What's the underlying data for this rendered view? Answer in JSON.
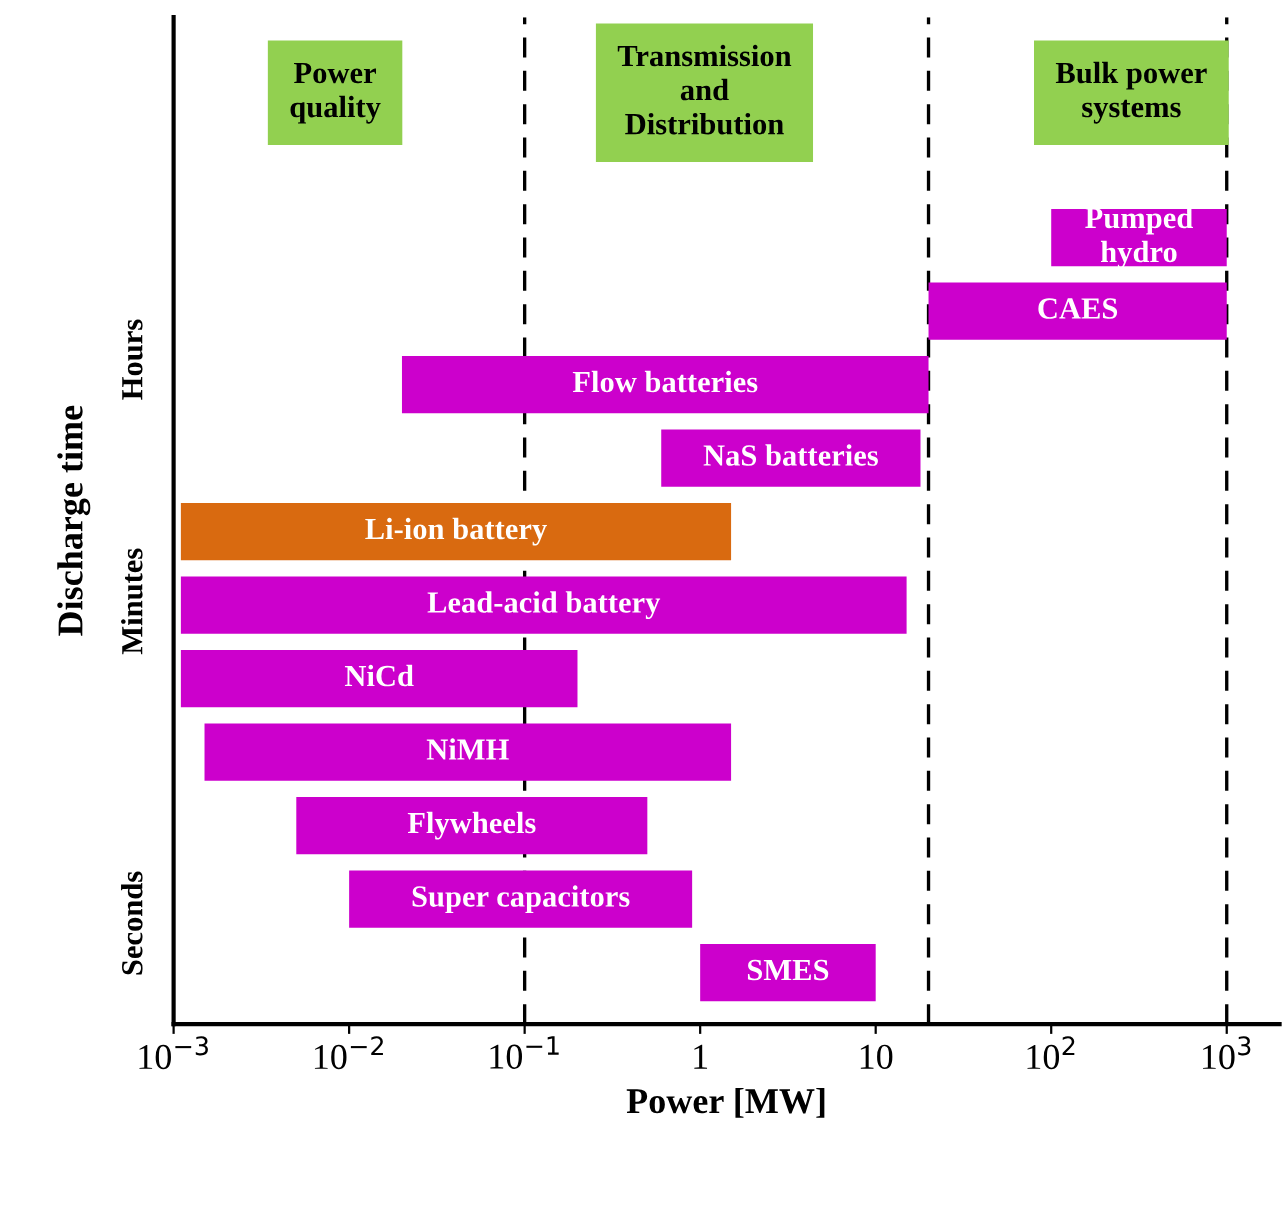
{
  "chart_data": {
    "type": "bar",
    "orientation": "horizontal",
    "xlabel": "Power [MW]",
    "ylabel": "Discharge time",
    "categories": [
      null,
      null,
      null,
      null,
      null,
      null,
      null,
      null,
      null,
      null,
      null
    ],
    "base": [
      100,
      20,
      0.02,
      0.6,
      0.0011,
      0.0011,
      0.0011,
      0.0015,
      0.005,
      0.01,
      1
    ],
    "values": [
      900,
      980,
      19.98,
      17.4,
      1.4989,
      14.9989,
      0.1989,
      1.4985,
      0.495,
      0.89,
      9
    ],
    "value_labels": [
      "Pumped\nhydro",
      "CAES",
      "Flow batteries",
      "NaS batteries",
      "Li-ion battery",
      "Lead-acid battery",
      "NiCd",
      "NiMH",
      "Flywheels",
      "Super capacitors",
      "SMES"
    ],
    "colors": [
      "#cc00cc",
      "#cc00cc",
      "#cc00cc",
      "#cc00cc",
      "#d96a10",
      "#cc00cc",
      "#cc00cc",
      "#cc00cc",
      "#cc00cc",
      "#cc00cc",
      "#cc00cc"
    ],
    "log": "x",
    "xlim": [
      0.001,
      2000
    ],
    "xticks": [
      {
        "value": 0.001,
        "label": "10$^{−3}$"
      },
      {
        "value": 0.01,
        "label": "10$^{−2}$"
      },
      {
        "value": 0.1,
        "label": "10$^{−1}$"
      },
      1,
      10,
      {
        "value": 100,
        "label": "10$^{2}$"
      },
      {
        "value": 1000,
        "label": "10$^{3}$"
      }
    ],
    "tick_labels": "x",
    "grid": false,
    "ref_lines": [
      {
        "axis": "x",
        "value": 0.1,
        "color": "#000000",
        "line_style": "dashed"
      },
      {
        "axis": "x",
        "value": 20,
        "color": "#000000",
        "line_style": "dashed"
      },
      {
        "axis": "x",
        "value": 1000,
        "color": "#000000",
        "line_style": "dashed"
      }
    ],
    "annotations": [
      "Power\nquality",
      "Transmission\nand\nDistribution",
      "Bulk power\nsystems",
      "Hours",
      "Minutes",
      "Seconds"
    ]
  }
}
